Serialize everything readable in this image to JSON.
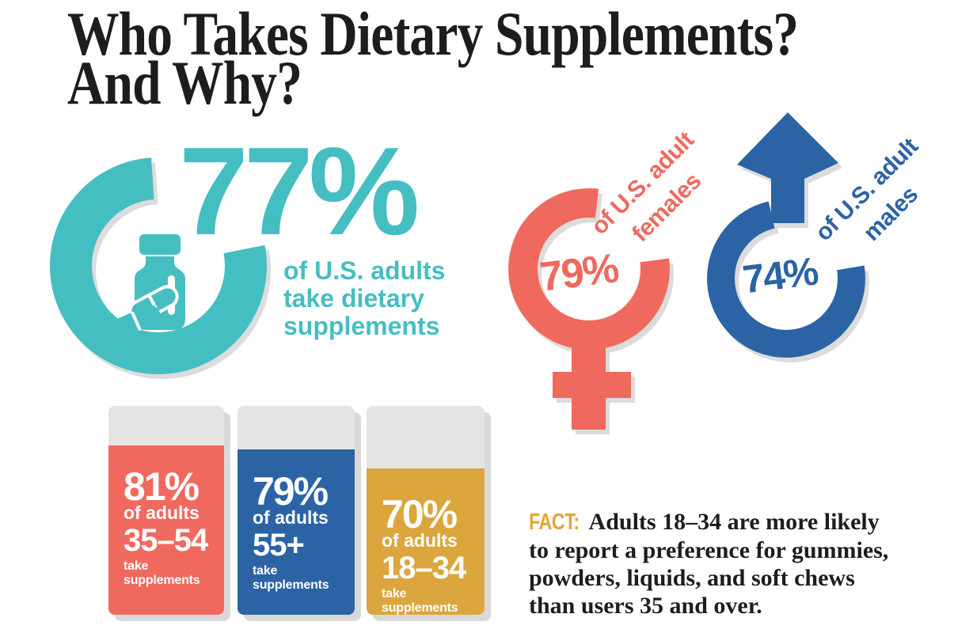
{
  "title": {
    "line1": "Who Takes Dietary Supplements?",
    "line2": "And Why?"
  },
  "colors": {
    "teal": "#45BEC2",
    "coral": "#F0695F",
    "blue": "#2B63A5",
    "gold": "#DBA63E",
    "cap_gray": "#E4E4E3",
    "shadow_gray": "#DCDCDC",
    "ink": "#1D1D1B",
    "fact_gold": "#E3A43C",
    "white": "#FFFFFF"
  },
  "icons": {
    "overall": "pill-bottle-icon",
    "overall_ring": "progress-ring-icon",
    "female": "female-gender-icon",
    "male": "male-gender-icon"
  },
  "overall": {
    "percent": 77,
    "value": "77%",
    "caption_lines": [
      "of U.S. adults",
      "take dietary",
      "supplements"
    ]
  },
  "female": {
    "percent": 79,
    "value": "79%",
    "label_lines": [
      "of U.S. adult",
      "females"
    ]
  },
  "male": {
    "percent": 74,
    "value": "74%",
    "label_lines": [
      "of U.S. adult",
      "males"
    ]
  },
  "age_groups": [
    {
      "percent": 81,
      "value": "81%",
      "of_label": "of adults",
      "range": "35–54",
      "suffix": "take supplements"
    },
    {
      "percent": 79,
      "value": "79%",
      "of_label": "of adults",
      "range": "55+",
      "suffix": "take supplements"
    },
    {
      "percent": 70,
      "value": "70%",
      "of_label": "of adults",
      "range": "18–34",
      "suffix": "take supplements"
    }
  ],
  "fact": {
    "label": "FACT:",
    "line1": "Adults 18–34 are more likely",
    "line2": "to report a preference for gummies,",
    "line3": "powders, liquids, and soft chews",
    "line4": "than users 35 and over."
  },
  "chart_data": {
    "type": "bar",
    "title": "Who Takes Dietary Supplements? And Why?",
    "categories": [
      "U.S. adults (overall)",
      "U.S. adult females",
      "U.S. adult males",
      "Adults 35–54",
      "Adults 55+",
      "Adults 18–34"
    ],
    "values": [
      77,
      79,
      74,
      81,
      79,
      70
    ],
    "unit": "%",
    "ylim": [
      0,
      100
    ],
    "annotation": "FACT: Adults 18–34 are more likely to report a preference for gummies, powders, liquids, and soft chews than users 35 and over."
  }
}
